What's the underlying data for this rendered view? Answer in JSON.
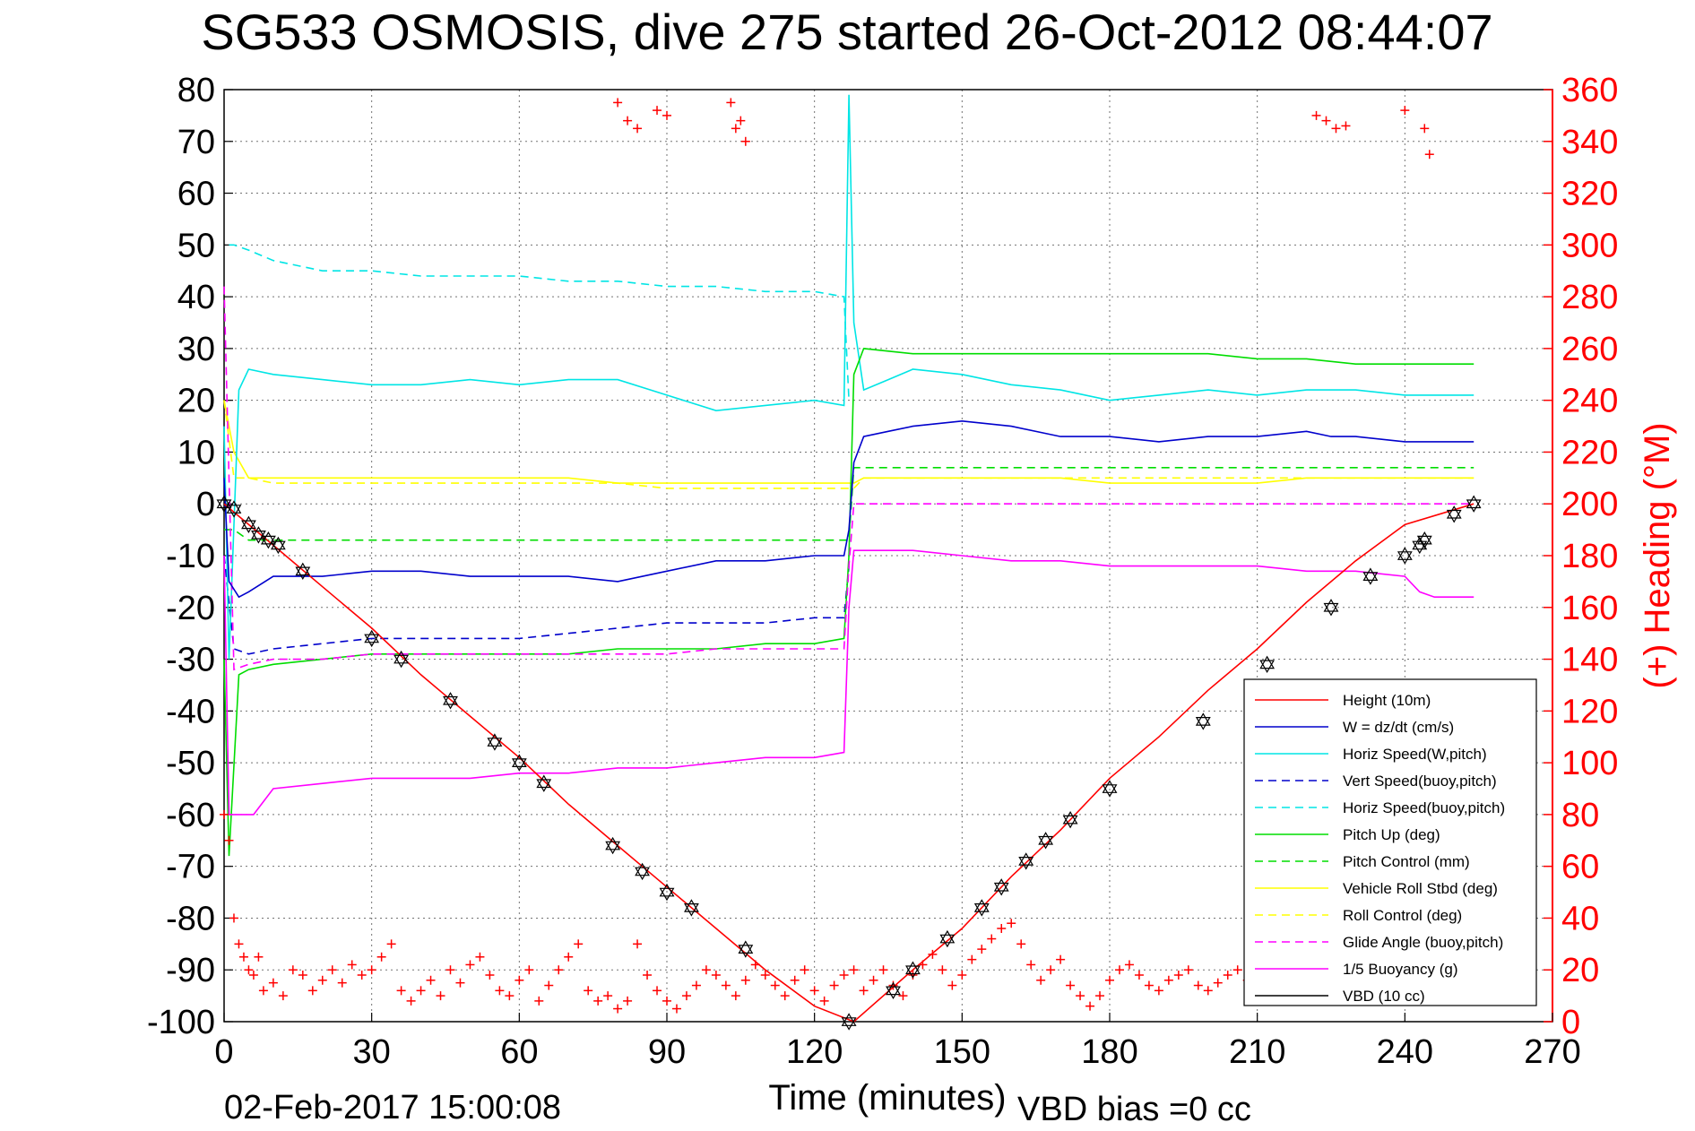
{
  "chart_data": {
    "type": "line",
    "title": "SG533 OSMOSIS, dive 275 started 26-Oct-2012 08:44:07",
    "xlabel": "Time (minutes)",
    "ylabel_right": "(+) Heading (°M)",
    "footer_left": "02-Feb-2017 15:00:08",
    "footer_right": "VBD bias =0 cc",
    "xlim": [
      0,
      270
    ],
    "ylim": [
      -100,
      80
    ],
    "ylim_right": [
      0,
      360
    ],
    "x_ticks": [
      "0",
      "30",
      "60",
      "90",
      "120",
      "150",
      "180",
      "210",
      "240",
      "270"
    ],
    "y_ticks": [
      "80",
      "70",
      "60",
      "50",
      "40",
      "30",
      "20",
      "10",
      "0",
      "-10",
      "-20",
      "-30",
      "-40",
      "-50",
      "-60",
      "-70",
      "-80",
      "-90",
      "-100"
    ],
    "y_ticks_right": [
      "360",
      "340",
      "320",
      "300",
      "280",
      "260",
      "240",
      "220",
      "200",
      "180",
      "160",
      "140",
      "120",
      "100",
      "80",
      "60",
      "40",
      "20",
      "0"
    ],
    "grid": true,
    "legend_position": "bottom-right",
    "colors": {
      "height": "#ff0000",
      "w": "#0000cc",
      "horiz_speed": "#00e5e5",
      "pitch": "#00dd00",
      "roll": "#ffff00",
      "glide": "#ff00ff",
      "vbd": "#000000",
      "heading": "#ff0000"
    },
    "series": [
      {
        "name": "Height (10m)",
        "style": "solid",
        "color": "#ff0000",
        "x": [
          0,
          10,
          20,
          30,
          40,
          50,
          60,
          70,
          80,
          90,
          100,
          110,
          120,
          128,
          140,
          150,
          160,
          170,
          180,
          190,
          200,
          210,
          220,
          230,
          240,
          254
        ],
        "y": [
          0,
          -8,
          -16,
          -24,
          -33,
          -41,
          -49,
          -58,
          -66,
          -74,
          -82,
          -90,
          -97,
          -100,
          -90,
          -82,
          -72,
          -63,
          -53,
          -45,
          -36,
          -28,
          -19,
          -11,
          -4,
          0
        ]
      },
      {
        "name": "W = dz/dt (cm/s)",
        "style": "solid",
        "color": "#0000cc",
        "x": [
          0,
          1,
          3,
          5,
          10,
          20,
          30,
          40,
          50,
          60,
          70,
          80,
          90,
          100,
          110,
          120,
          126,
          127,
          128,
          130,
          135,
          140,
          150,
          160,
          170,
          180,
          190,
          200,
          210,
          220,
          225,
          230,
          240,
          254
        ],
        "y": [
          5,
          -15,
          -18,
          -17,
          -14,
          -14,
          -13,
          -13,
          -14,
          -14,
          -14,
          -15,
          -13,
          -11,
          -11,
          -10,
          -10,
          -5,
          8,
          13,
          14,
          15,
          16,
          15,
          13,
          13,
          12,
          13,
          13,
          14,
          13,
          13,
          12,
          12
        ]
      },
      {
        "name": "Horiz Speed(W,pitch)",
        "style": "solid",
        "color": "#00e5e5",
        "x": [
          0,
          1,
          3,
          5,
          10,
          20,
          30,
          40,
          50,
          60,
          70,
          80,
          90,
          100,
          110,
          120,
          126,
          127,
          128,
          130,
          135,
          140,
          150,
          160,
          170,
          180,
          190,
          200,
          210,
          220,
          230,
          240,
          254
        ],
        "y": [
          15,
          -30,
          22,
          26,
          25,
          24,
          23,
          23,
          24,
          23,
          24,
          24,
          21,
          18,
          19,
          20,
          19,
          79,
          35,
          22,
          24,
          26,
          25,
          23,
          22,
          20,
          21,
          22,
          21,
          22,
          22,
          21,
          21
        ]
      },
      {
        "name": "Vert Speed(buoy,pitch)",
        "style": "dashed",
        "color": "#0000cc",
        "x": [
          0,
          2,
          5,
          10,
          20,
          30,
          40,
          50,
          60,
          70,
          80,
          90,
          100,
          110,
          120,
          126,
          127
        ],
        "y": [
          -10,
          -28,
          -29,
          -28,
          -27,
          -26,
          -26,
          -26,
          -26,
          -25,
          -24,
          -23,
          -23,
          -23,
          -22,
          -22,
          -12
        ]
      },
      {
        "name": "Horiz Speed(buoy,pitch)",
        "style": "dashed",
        "color": "#00e5e5",
        "x": [
          1,
          2,
          5,
          10,
          20,
          30,
          40,
          50,
          60,
          70,
          80,
          90,
          100,
          110,
          120,
          126,
          127
        ],
        "y": [
          50,
          50,
          49,
          47,
          45,
          45,
          44,
          44,
          44,
          43,
          43,
          42,
          42,
          41,
          41,
          40,
          20
        ]
      },
      {
        "name": "Pitch Up (deg)",
        "style": "solid",
        "color": "#00dd00",
        "x": [
          0,
          1,
          3,
          5,
          10,
          20,
          30,
          40,
          50,
          60,
          70,
          80,
          90,
          100,
          110,
          120,
          126,
          127,
          128,
          130,
          140,
          150,
          160,
          170,
          180,
          190,
          200,
          210,
          220,
          230,
          240,
          254
        ],
        "y": [
          -30,
          -68,
          -33,
          -32,
          -31,
          -30,
          -29,
          -29,
          -29,
          -29,
          -29,
          -28,
          -28,
          -28,
          -27,
          -27,
          -26,
          -10,
          25,
          30,
          29,
          29,
          29,
          29,
          29,
          29,
          29,
          28,
          28,
          27,
          27,
          27
        ]
      },
      {
        "name": "Pitch Control (mm)",
        "style": "dashed",
        "color": "#00dd00",
        "x": [
          0,
          2,
          5,
          10,
          20,
          30,
          40,
          50,
          60,
          70,
          80,
          90,
          100,
          110,
          120,
          126,
          127,
          128,
          130,
          140,
          150,
          160,
          170,
          180,
          190,
          200,
          210,
          220,
          230,
          240,
          254
        ],
        "y": [
          -5,
          -5,
          -7,
          -7,
          -7,
          -7,
          -7,
          -7,
          -7,
          -7,
          -7,
          -7,
          -7,
          -7,
          -7,
          -7,
          -7,
          7,
          7,
          7,
          7,
          7,
          7,
          7,
          7,
          7,
          7,
          7,
          7,
          7,
          7
        ]
      },
      {
        "name": "Vehicle Roll Stbd (deg)",
        "style": "solid",
        "color": "#ffff00",
        "x": [
          0,
          2,
          5,
          10,
          20,
          30,
          40,
          50,
          60,
          70,
          80,
          90,
          100,
          110,
          120,
          126,
          127,
          128,
          130,
          140,
          150,
          160,
          170,
          180,
          190,
          200,
          210,
          220,
          230,
          240,
          254
        ],
        "y": [
          20,
          10,
          5,
          5,
          5,
          5,
          5,
          5,
          5,
          5,
          4,
          4,
          4,
          4,
          4,
          4,
          4,
          4,
          5,
          5,
          5,
          5,
          5,
          4,
          4,
          4,
          4,
          5,
          5,
          5,
          5
        ]
      },
      {
        "name": "Roll Control (deg)",
        "style": "dashed",
        "color": "#ffff00",
        "x": [
          0,
          2,
          5,
          10,
          20,
          30,
          40,
          50,
          60,
          70,
          80,
          90,
          100,
          110,
          120,
          126,
          127,
          128,
          130,
          140,
          150,
          160,
          170,
          180,
          190,
          200,
          210,
          220,
          230,
          240,
          254
        ],
        "y": [
          20,
          5,
          5,
          4,
          4,
          4,
          4,
          4,
          4,
          4,
          4,
          3,
          3,
          3,
          3,
          3,
          3,
          3,
          5,
          5,
          5,
          5,
          5,
          5,
          5,
          5,
          5,
          5,
          5,
          5,
          5
        ]
      },
      {
        "name": "Glide Angle (buoy,pitch)",
        "style": "dashed",
        "color": "#ff00ff",
        "x": [
          0,
          2,
          5,
          10,
          20,
          30,
          40,
          50,
          60,
          70,
          80,
          90,
          100,
          110,
          120,
          126,
          127,
          128,
          130,
          140,
          150,
          160,
          170,
          180,
          190,
          200,
          210,
          220,
          230,
          240,
          254
        ],
        "y": [
          42,
          -32,
          -31,
          -30,
          -30,
          -29,
          -29,
          -29,
          -29,
          -29,
          -29,
          -29,
          -28,
          -28,
          -28,
          -28,
          -12,
          0,
          0,
          0,
          0,
          0,
          0,
          0,
          0,
          0,
          0,
          0,
          0,
          0,
          0
        ]
      },
      {
        "name": "1/5 Buoyancy (g)",
        "style": "solid",
        "color": "#ff00ff",
        "x": [
          0,
          1,
          2,
          3,
          6,
          10,
          20,
          30,
          40,
          50,
          60,
          70,
          80,
          90,
          100,
          110,
          120,
          126,
          127,
          128,
          130,
          140,
          150,
          160,
          170,
          180,
          190,
          200,
          210,
          220,
          230,
          240,
          243,
          246,
          250,
          254
        ],
        "y": [
          -10,
          -60,
          -60,
          -60,
          -60,
          -55,
          -54,
          -53,
          -53,
          -53,
          -52,
          -52,
          -51,
          -51,
          -50,
          -49,
          -49,
          -48,
          -20,
          -9,
          -9,
          -9,
          -10,
          -11,
          -11,
          -12,
          -12,
          -12,
          -12,
          -13,
          -13,
          -14,
          -17,
          -18,
          -18,
          -18
        ]
      },
      {
        "name": "VBD (10 cc)",
        "style": "solid",
        "color": "#000000",
        "x": [
          0,
          1,
          2,
          3,
          10,
          20,
          30,
          40,
          50,
          60,
          70,
          80,
          90,
          100,
          110,
          120,
          126,
          127,
          128,
          130,
          140,
          150,
          160,
          170,
          180,
          190,
          200,
          210,
          220,
          230,
          240,
          254
        ],
        "y": [
          0,
          -5,
          -10,
          -10,
          -10,
          -10,
          -10,
          -10,
          -10,
          -10,
          -10,
          -10,
          -10,
          -10,
          -10,
          -10,
          -10,
          0,
          10,
          10,
          10,
          10,
          10,
          10,
          10,
          10,
          10,
          10,
          10,
          10,
          10,
          10
        ]
      }
    ],
    "markers": {
      "shape": "hexagram",
      "x": [
        0,
        2,
        5,
        7,
        9,
        11,
        16,
        30,
        36,
        46,
        55,
        60,
        65,
        79,
        85,
        90,
        95,
        106,
        127,
        136,
        140,
        147,
        154,
        158,
        163,
        167,
        172,
        180,
        199,
        212,
        225,
        233,
        240,
        243,
        244,
        250,
        254
      ],
      "y": [
        0,
        -1,
        -4,
        -6,
        -7,
        -8,
        -13,
        -26,
        -30,
        -38,
        -46,
        -50,
        -54,
        -66,
        -71,
        -75,
        -78,
        -86,
        -100,
        -94,
        -90,
        -84,
        -78,
        -74,
        -69,
        -65,
        -61,
        -55,
        -42,
        -31,
        -20,
        -14,
        -10,
        -8,
        -7,
        -2,
        0
      ]
    },
    "heading": {
      "name": "(+) Heading (°M)",
      "axis": "right",
      "marker": "+",
      "color": "#ff0000",
      "x": [
        0,
        1,
        2,
        3,
        4,
        5,
        6,
        7,
        8,
        10,
        12,
        14,
        16,
        18,
        20,
        22,
        24,
        26,
        28,
        30,
        32,
        34,
        36,
        38,
        40,
        42,
        44,
        46,
        48,
        50,
        52,
        54,
        56,
        58,
        60,
        62,
        64,
        66,
        68,
        70,
        72,
        74,
        76,
        78,
        80,
        82,
        84,
        86,
        88,
        90,
        92,
        94,
        96,
        98,
        100,
        102,
        104,
        106,
        108,
        110,
        112,
        114,
        116,
        118,
        120,
        122,
        124,
        126,
        128,
        130,
        132,
        134,
        136,
        138,
        140,
        142,
        144,
        146,
        148,
        150,
        152,
        154,
        156,
        158,
        160,
        162,
        164,
        166,
        168,
        170,
        172,
        174,
        176,
        178,
        180,
        182,
        184,
        186,
        188,
        190,
        192,
        194,
        196,
        198,
        200,
        202,
        204,
        206,
        208,
        210,
        212,
        214,
        216,
        218,
        220,
        224,
        230,
        240,
        246,
        250,
        254,
        80,
        82,
        84,
        88,
        90,
        103,
        104,
        105,
        106,
        222,
        224,
        226,
        228,
        240,
        244,
        245
      ],
      "y": [
        80,
        70,
        40,
        30,
        25,
        20,
        18,
        25,
        12,
        15,
        10,
        20,
        18,
        12,
        16,
        20,
        15,
        22,
        18,
        20,
        25,
        30,
        12,
        8,
        12,
        16,
        10,
        20,
        15,
        22,
        25,
        18,
        12,
        10,
        16,
        20,
        8,
        14,
        20,
        25,
        30,
        12,
        8,
        10,
        5,
        8,
        30,
        18,
        12,
        8,
        5,
        10,
        14,
        20,
        18,
        14,
        10,
        16,
        22,
        18,
        14,
        10,
        16,
        20,
        12,
        8,
        14,
        18,
        20,
        12,
        16,
        20,
        14,
        10,
        18,
        22,
        26,
        20,
        14,
        18,
        24,
        28,
        32,
        36,
        38,
        30,
        22,
        16,
        20,
        24,
        14,
        10,
        6,
        10,
        16,
        20,
        22,
        18,
        14,
        12,
        16,
        18,
        20,
        14,
        12,
        15,
        18,
        20,
        16,
        18,
        22,
        14,
        10,
        16,
        20,
        15,
        12,
        20,
        18,
        14,
        12,
        355,
        348,
        345,
        352,
        350,
        355,
        345,
        348,
        340,
        350,
        348,
        345,
        346,
        352,
        345,
        335
      ]
    }
  }
}
